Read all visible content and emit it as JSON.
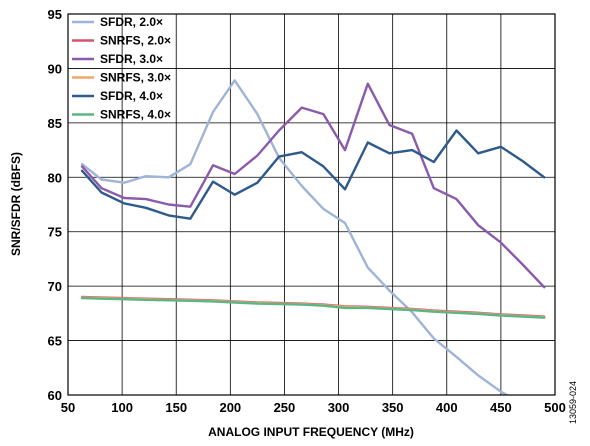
{
  "chart_data": {
    "type": "line",
    "title": "",
    "xlabel": "ANALOG INPUT FREQUENCY (MHz)",
    "ylabel": "SNR/SFDR (dBFS)",
    "xlim": [
      50,
      500
    ],
    "ylim": [
      60,
      95
    ],
    "xticks": [
      50,
      100,
      150,
      200,
      250,
      300,
      350,
      400,
      450,
      500
    ],
    "yticks": [
      60,
      65,
      70,
      75,
      80,
      85,
      90,
      95
    ],
    "grid": true,
    "legend_position": "top-left",
    "side_note": "13059-024",
    "series": [
      {
        "name": "SFDR, 2.0×",
        "color": "#9fb4d6",
        "x": [
          63,
          81,
          102,
          122,
          143,
          163,
          184,
          204,
          225,
          245,
          266,
          286,
          306,
          327,
          347,
          368,
          388,
          409,
          429,
          450,
          470,
          490
        ],
        "y": [
          81.2,
          79.8,
          79.5,
          80.1,
          80.0,
          81.2,
          86.0,
          88.9,
          85.8,
          81.8,
          79.2,
          77.1,
          75.8,
          71.7,
          69.6,
          67.6,
          65.2,
          63.5,
          61.8,
          60.3,
          59.2,
          58.5
        ]
      },
      {
        "name": "SNRFS, 2.0×",
        "color": "#d6536b",
        "x": [
          63,
          81,
          102,
          122,
          143,
          163,
          184,
          204,
          225,
          245,
          266,
          286,
          306,
          327,
          347,
          368,
          388,
          409,
          429,
          450,
          470,
          490
        ],
        "y": [
          69.0,
          68.95,
          68.9,
          68.85,
          68.8,
          68.75,
          68.7,
          68.6,
          68.5,
          68.45,
          68.4,
          68.3,
          68.15,
          68.1,
          68.0,
          67.9,
          67.75,
          67.65,
          67.55,
          67.4,
          67.3,
          67.2
        ]
      },
      {
        "name": "SFDR, 3.0×",
        "color": "#8a5aad",
        "x": [
          63,
          81,
          102,
          122,
          143,
          163,
          184,
          204,
          225,
          245,
          266,
          286,
          306,
          327,
          347,
          368,
          388,
          409,
          429,
          450,
          470,
          490
        ],
        "y": [
          81.0,
          79.0,
          78.1,
          78.0,
          77.5,
          77.3,
          81.1,
          80.3,
          82.0,
          84.3,
          86.4,
          85.8,
          82.5,
          88.6,
          84.8,
          84.0,
          79.0,
          78.0,
          75.6,
          74.0,
          72.0,
          69.9
        ]
      },
      {
        "name": "SNRFS, 3.0×",
        "color": "#f0a86a",
        "x": [
          63,
          81,
          102,
          122,
          143,
          163,
          184,
          204,
          225,
          245,
          266,
          286,
          306,
          327,
          347,
          368,
          388,
          409,
          429,
          450,
          470,
          490
        ],
        "y": [
          68.95,
          68.9,
          68.85,
          68.8,
          68.75,
          68.7,
          68.65,
          68.55,
          68.45,
          68.4,
          68.35,
          68.25,
          68.1,
          68.05,
          67.95,
          67.85,
          67.7,
          67.6,
          67.5,
          67.35,
          67.25,
          67.15
        ]
      },
      {
        "name": "SFDR, 4.0×",
        "color": "#2f5a8c",
        "x": [
          63,
          81,
          102,
          122,
          143,
          163,
          184,
          204,
          225,
          245,
          266,
          286,
          306,
          327,
          347,
          368,
          388,
          409,
          429,
          450,
          470,
          490
        ],
        "y": [
          80.6,
          78.6,
          77.6,
          77.2,
          76.5,
          76.2,
          79.6,
          78.4,
          79.5,
          81.9,
          82.3,
          81.0,
          78.9,
          83.2,
          82.2,
          82.5,
          81.4,
          84.3,
          82.2,
          82.8,
          81.5,
          80.0
        ]
      },
      {
        "name": "SNRFS, 4.0×",
        "color": "#5bb585",
        "x": [
          63,
          81,
          102,
          122,
          143,
          163,
          184,
          204,
          225,
          245,
          266,
          286,
          306,
          327,
          347,
          368,
          388,
          409,
          429,
          450,
          470,
          490
        ],
        "y": [
          68.9,
          68.85,
          68.8,
          68.75,
          68.7,
          68.65,
          68.6,
          68.5,
          68.4,
          68.35,
          68.3,
          68.2,
          68.0,
          68.0,
          67.9,
          67.8,
          67.65,
          67.55,
          67.45,
          67.3,
          67.2,
          67.1
        ]
      }
    ]
  }
}
